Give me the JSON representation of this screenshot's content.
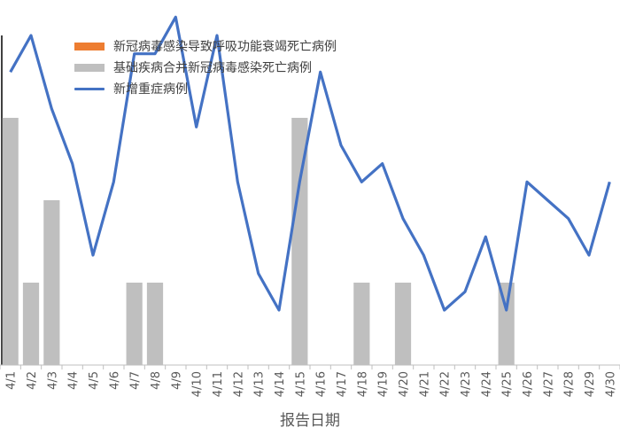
{
  "chart_data": {
    "type": "bar+line",
    "categories": [
      "4/1",
      "4/2",
      "4/3",
      "4/4",
      "4/5",
      "4/6",
      "4/7",
      "4/8",
      "4/9",
      "4/10",
      "4/11",
      "4/12",
      "4/13",
      "4/14",
      "4/15",
      "4/16",
      "4/17",
      "4/18",
      "4/19",
      "4/20",
      "4/21",
      "4/22",
      "4/23",
      "4/24",
      "4/25",
      "4/26",
      "4/27",
      "4/28",
      "4/29",
      "4/30"
    ],
    "xlabel": "报告日期",
    "ylabel": "",
    "title": "",
    "ylim_bar": [
      0,
      3
    ],
    "ylim_line": [
      0,
      18
    ],
    "series": [
      {
        "name": "新冠病毒感染导致呼吸功能衰竭死亡病例",
        "type": "bar",
        "color": "#ED7D31",
        "values": [
          0,
          0,
          0,
          0,
          0,
          0,
          0,
          0,
          0,
          0,
          0,
          0,
          0,
          0,
          0,
          0,
          0,
          0,
          0,
          0,
          0,
          0,
          0,
          0,
          0,
          0,
          0,
          0,
          0,
          0
        ]
      },
      {
        "name": "基础疾病合并新冠病毒感染死亡病例",
        "type": "bar",
        "color": "#BFBFBF",
        "values": [
          3,
          1,
          2,
          0,
          0,
          0,
          1,
          1,
          0,
          0,
          0,
          0,
          0,
          0,
          3,
          0,
          0,
          1,
          0,
          1,
          0,
          0,
          0,
          0,
          1,
          0,
          0,
          0,
          0,
          0
        ]
      },
      {
        "name": "新增重症病例",
        "type": "line",
        "color": "#4472C4",
        "values": [
          16,
          18,
          14,
          11,
          6,
          10,
          17,
          17,
          19,
          13,
          18,
          10,
          5,
          3,
          10,
          16,
          12,
          10,
          11,
          8,
          6,
          3,
          4,
          7,
          3,
          10,
          9,
          8,
          6,
          10
        ]
      }
    ],
    "grid": false,
    "legend_position": "top-left"
  }
}
